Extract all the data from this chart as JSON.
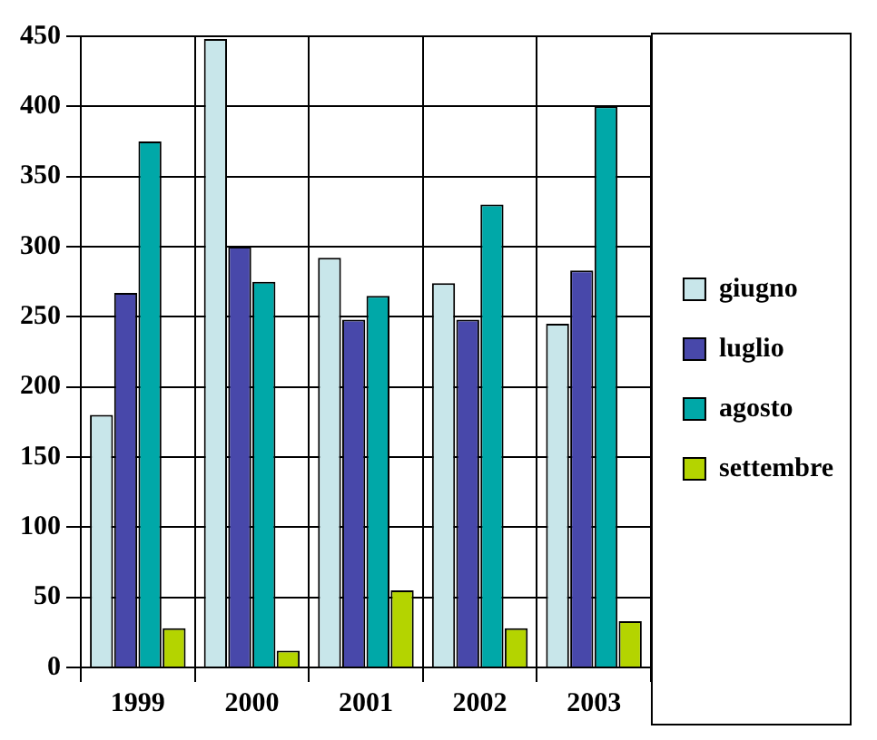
{
  "chart_data": {
    "type": "bar",
    "categories": [
      "1999",
      "2000",
      "2001",
      "2002",
      "2003"
    ],
    "series": [
      {
        "name": "giugno",
        "color": "#c8e6ea",
        "values": [
          180,
          448,
          292,
          274,
          245
        ]
      },
      {
        "name": "luglio",
        "color": "#4848aa",
        "values": [
          267,
          300,
          248,
          248,
          283
        ]
      },
      {
        "name": "agosto",
        "color": "#00a8a8",
        "values": [
          375,
          275,
          265,
          330,
          400
        ]
      },
      {
        "name": "settembre",
        "color": "#b4d400",
        "values": [
          28,
          12,
          55,
          28,
          33
        ]
      }
    ],
    "ylim": [
      0,
      450
    ],
    "yticks": [
      0,
      50,
      100,
      150,
      200,
      250,
      300,
      350,
      400,
      450
    ],
    "grid": true,
    "legend": "right"
  }
}
